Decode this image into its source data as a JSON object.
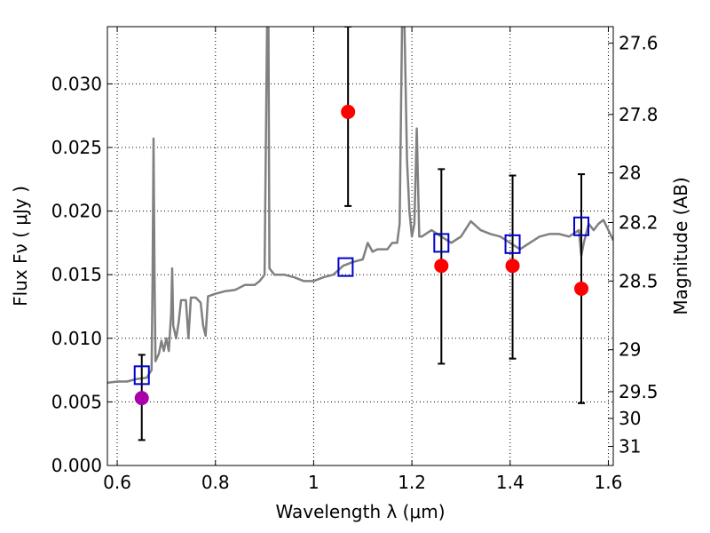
{
  "chart_data": {
    "type": "line",
    "xlabel": "Wavelength  λ (μm)",
    "ylabel": "Flux  Fν  ( μJy )",
    "ylabel_right": "Magnitude (AB)",
    "xlim": [
      0.58,
      1.61
    ],
    "ylim": [
      0.0,
      0.0345
    ],
    "grid": true,
    "x_ticks": [
      {
        "value": 0.6,
        "label": "0.6"
      },
      {
        "value": 0.8,
        "label": "0.8"
      },
      {
        "value": 1.0,
        "label": "1"
      },
      {
        "value": 1.2,
        "label": "1.2"
      },
      {
        "value": 1.4,
        "label": "1.4"
      },
      {
        "value": 1.6,
        "label": "1.6"
      }
    ],
    "y_ticks": [
      {
        "value": 0.0,
        "label": "0.000"
      },
      {
        "value": 0.005,
        "label": "0.005"
      },
      {
        "value": 0.01,
        "label": "0.010"
      },
      {
        "value": 0.015,
        "label": "0.015"
      },
      {
        "value": 0.02,
        "label": "0.020"
      },
      {
        "value": 0.025,
        "label": "0.025"
      },
      {
        "value": 0.03,
        "label": "0.030"
      }
    ],
    "right_ticks": [
      {
        "flux": 0.0332,
        "label": "27.6"
      },
      {
        "flux": 0.0276,
        "label": "27.8"
      },
      {
        "flux": 0.023,
        "label": "28"
      },
      {
        "flux": 0.0191,
        "label": "28.2"
      },
      {
        "flux": 0.0145,
        "label": "28.5"
      },
      {
        "flux": 0.0091,
        "label": "29"
      },
      {
        "flux": 0.0058,
        "label": "29.5"
      },
      {
        "flux": 0.0037,
        "label": "30"
      },
      {
        "flux": 0.0015,
        "label": "31"
      }
    ],
    "series": [
      {
        "kind": "line",
        "color": "#808080",
        "points": [
          [
            0.58,
            0.0065
          ],
          [
            0.6,
            0.0066
          ],
          [
            0.62,
            0.0066
          ],
          [
            0.64,
            0.0068
          ],
          [
            0.66,
            0.0069
          ],
          [
            0.665,
            0.0072
          ],
          [
            0.67,
            0.0075
          ],
          [
            0.672,
            0.0145
          ],
          [
            0.674,
            0.0257
          ],
          [
            0.676,
            0.015
          ],
          [
            0.678,
            0.0082
          ],
          [
            0.685,
            0.0088
          ],
          [
            0.69,
            0.0098
          ],
          [
            0.695,
            0.009
          ],
          [
            0.7,
            0.01
          ],
          [
            0.705,
            0.009
          ],
          [
            0.71,
            0.012
          ],
          [
            0.712,
            0.0155
          ],
          [
            0.714,
            0.011
          ],
          [
            0.72,
            0.01
          ],
          [
            0.725,
            0.0112
          ],
          [
            0.73,
            0.013
          ],
          [
            0.74,
            0.013
          ],
          [
            0.745,
            0.01
          ],
          [
            0.75,
            0.0132
          ],
          [
            0.76,
            0.0132
          ],
          [
            0.77,
            0.0128
          ],
          [
            0.775,
            0.011
          ],
          [
            0.78,
            0.0102
          ],
          [
            0.785,
            0.0133
          ],
          [
            0.8,
            0.0135
          ],
          [
            0.82,
            0.0137
          ],
          [
            0.84,
            0.0138
          ],
          [
            0.86,
            0.0142
          ],
          [
            0.88,
            0.0142
          ],
          [
            0.89,
            0.0145
          ],
          [
            0.9,
            0.015
          ],
          [
            0.905,
            0.0345
          ],
          [
            0.908,
            0.0345
          ],
          [
            0.91,
            0.0155
          ],
          [
            0.92,
            0.015
          ],
          [
            0.94,
            0.015
          ],
          [
            0.96,
            0.0148
          ],
          [
            0.98,
            0.0145
          ],
          [
            1.0,
            0.0145
          ],
          [
            1.02,
            0.0148
          ],
          [
            1.04,
            0.015
          ],
          [
            1.06,
            0.0157
          ],
          [
            1.08,
            0.016
          ],
          [
            1.1,
            0.0162
          ],
          [
            1.11,
            0.0175
          ],
          [
            1.12,
            0.0168
          ],
          [
            1.13,
            0.017
          ],
          [
            1.15,
            0.017
          ],
          [
            1.16,
            0.0175
          ],
          [
            1.17,
            0.0175
          ],
          [
            1.175,
            0.019
          ],
          [
            1.18,
            0.0345
          ],
          [
            1.185,
            0.0345
          ],
          [
            1.19,
            0.024
          ],
          [
            1.195,
            0.02
          ],
          [
            1.2,
            0.018
          ],
          [
            1.205,
            0.019
          ],
          [
            1.21,
            0.0265
          ],
          [
            1.215,
            0.018
          ],
          [
            1.22,
            0.018
          ],
          [
            1.24,
            0.0185
          ],
          [
            1.26,
            0.018
          ],
          [
            1.28,
            0.0175
          ],
          [
            1.3,
            0.018
          ],
          [
            1.32,
            0.0192
          ],
          [
            1.34,
            0.0185
          ],
          [
            1.36,
            0.0182
          ],
          [
            1.38,
            0.018
          ],
          [
            1.4,
            0.0175
          ],
          [
            1.42,
            0.017
          ],
          [
            1.44,
            0.0175
          ],
          [
            1.46,
            0.018
          ],
          [
            1.48,
            0.0182
          ],
          [
            1.5,
            0.0182
          ],
          [
            1.52,
            0.018
          ],
          [
            1.54,
            0.0185
          ],
          [
            1.545,
            0.0165
          ],
          [
            1.55,
            0.0175
          ],
          [
            1.56,
            0.019
          ],
          [
            1.57,
            0.0185
          ],
          [
            1.58,
            0.019
          ],
          [
            1.59,
            0.0193
          ],
          [
            1.6,
            0.0185
          ],
          [
            1.61,
            0.0177
          ]
        ]
      },
      {
        "kind": "points",
        "marker": "circle",
        "color": "#ff0000",
        "points": [
          {
            "x": 1.07,
            "y": 0.0278,
            "err_low": 0.0204,
            "err_high": 0.0345
          },
          {
            "x": 1.26,
            "y": 0.0157,
            "err_low": 0.008,
            "err_high": 0.0233
          },
          {
            "x": 1.405,
            "y": 0.0157,
            "err_low": 0.0084,
            "err_high": 0.0228
          },
          {
            "x": 1.545,
            "y": 0.0139,
            "err_low": 0.0049,
            "err_high": 0.0229
          }
        ]
      },
      {
        "kind": "points",
        "marker": "circle",
        "color": "#aa00aa",
        "points": [
          {
            "x": 0.65,
            "y": 0.0053,
            "err_low": 0.002,
            "err_high": 0.0087
          }
        ]
      },
      {
        "kind": "points",
        "marker": "square-open",
        "color": "#0000cc",
        "points": [
          {
            "x": 0.65,
            "y": 0.0071
          },
          {
            "x": 1.065,
            "y": 0.0156
          },
          {
            "x": 1.26,
            "y": 0.0175
          },
          {
            "x": 1.405,
            "y": 0.0174
          },
          {
            "x": 1.545,
            "y": 0.0188
          }
        ]
      }
    ]
  }
}
